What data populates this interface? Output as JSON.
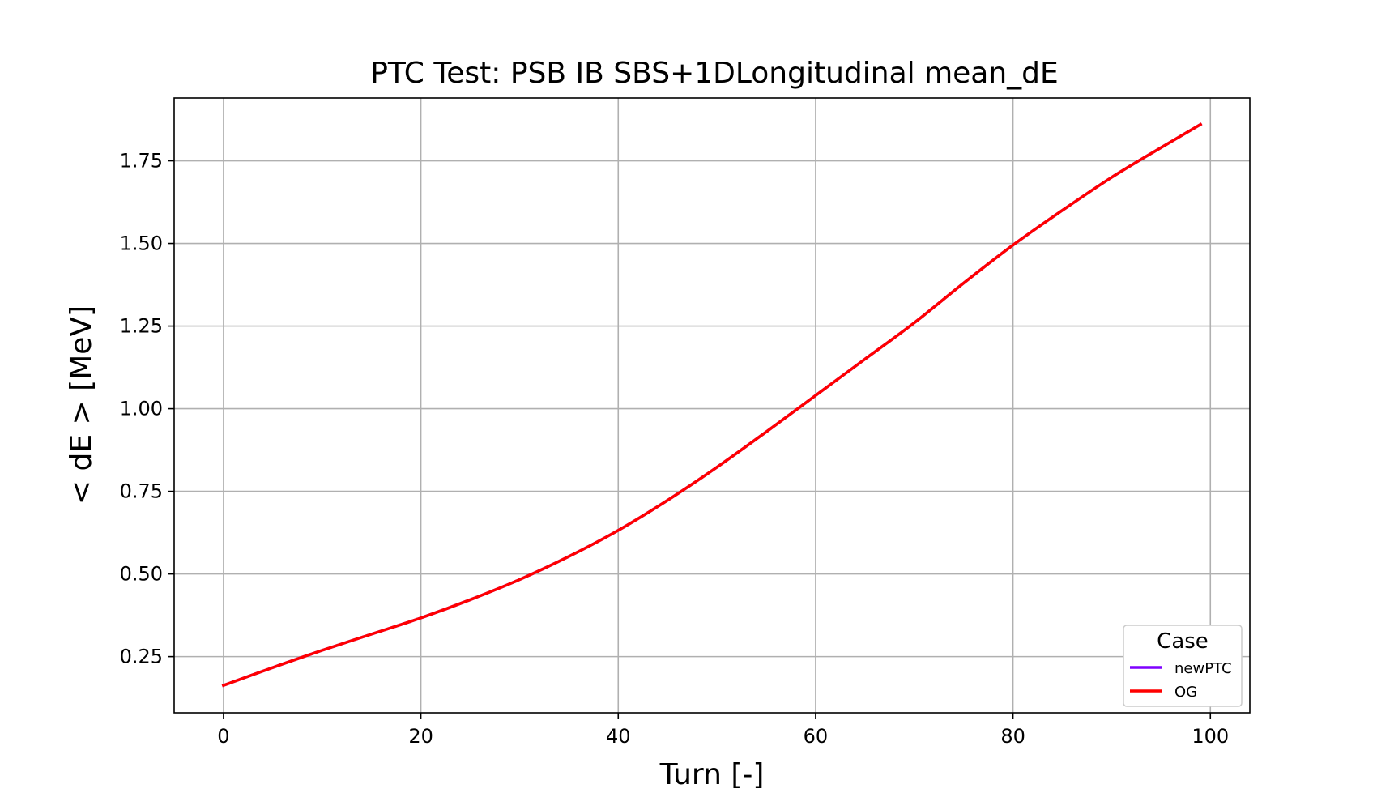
{
  "chart_data": {
    "type": "line",
    "title": "PTC Test: PSB IB SBS+1DLongitudinal mean_dE",
    "xlabel": "Turn [-]",
    "ylabel": "< dE >  [MeV]",
    "xlim": [
      -5,
      104
    ],
    "ylim": [
      0.08,
      1.94
    ],
    "xticks": [
      0,
      20,
      40,
      60,
      80,
      100
    ],
    "xtick_labels": [
      "0",
      "20",
      "40",
      "60",
      "80",
      "100"
    ],
    "yticks": [
      0.25,
      0.5,
      0.75,
      1.0,
      1.25,
      1.5,
      1.75
    ],
    "ytick_labels": [
      "0.25",
      "0.50",
      "0.75",
      "1.00",
      "1.25",
      "1.50",
      "1.75"
    ],
    "grid": true,
    "legend": {
      "title": "Case",
      "placement": "lower-right"
    },
    "series": [
      {
        "name": "newPTC",
        "color": "#7f00ff",
        "x": [
          0,
          5,
          10,
          15,
          20,
          25,
          30,
          35,
          40,
          45,
          50,
          55,
          60,
          65,
          70,
          75,
          80,
          85,
          90,
          95,
          99
        ],
        "y": [
          0.163,
          0.217,
          0.269,
          0.318,
          0.367,
          0.422,
          0.483,
          0.553,
          0.632,
          0.723,
          0.823,
          0.93,
          1.04,
          1.15,
          1.26,
          1.38,
          1.495,
          1.6,
          1.7,
          1.79,
          1.86
        ]
      },
      {
        "name": "OG",
        "color": "#ff0000",
        "x": [
          0,
          5,
          10,
          15,
          20,
          25,
          30,
          35,
          40,
          45,
          50,
          55,
          60,
          65,
          70,
          75,
          80,
          85,
          90,
          95,
          99
        ],
        "y": [
          0.163,
          0.217,
          0.269,
          0.318,
          0.367,
          0.422,
          0.483,
          0.553,
          0.632,
          0.723,
          0.823,
          0.93,
          1.04,
          1.15,
          1.26,
          1.38,
          1.495,
          1.6,
          1.7,
          1.79,
          1.86
        ]
      }
    ]
  }
}
